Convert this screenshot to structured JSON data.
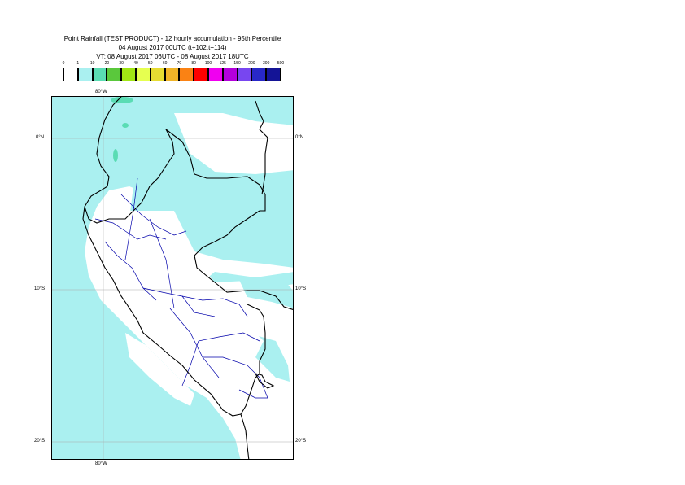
{
  "title": {
    "line1": "Point Rainfall (TEST PRODUCT) - 12 hourly accumulation - 95th Percentile",
    "line2": "04 August 2017 00UTC (t+102,t+114)",
    "line3": "VT: 08 August 2017 06UTC - 08 August 2017 18UTC"
  },
  "legend": {
    "thresholds": [
      "0",
      "1",
      "10",
      "20",
      "30",
      "40",
      "50",
      "60",
      "70",
      "80",
      "100",
      "125",
      "150",
      "200",
      "300",
      "500"
    ],
    "colors": [
      "#ffffff",
      "#aaf0f0",
      "#5adcb4",
      "#5ac83c",
      "#a0e614",
      "#e6ff50",
      "#e6dc32",
      "#f0b428",
      "#fa8214",
      "#ff0000",
      "#f000f0",
      "#b400dc",
      "#7846f0",
      "#2828c8",
      "#141496"
    ]
  },
  "map": {
    "lon_labels": {
      "top": "80°W",
      "bottom": "80°W"
    },
    "lat_labels": [
      {
        "left": "0°N",
        "right": "0°N"
      },
      {
        "left": "10°S",
        "right": "10°S"
      },
      {
        "left": "20°S",
        "right": "20°S"
      }
    ],
    "rain_color": "#aaf0f0",
    "heavy_rain_color": "#5adcb4",
    "border_color": "#000000",
    "region_color": "#0000aa"
  }
}
